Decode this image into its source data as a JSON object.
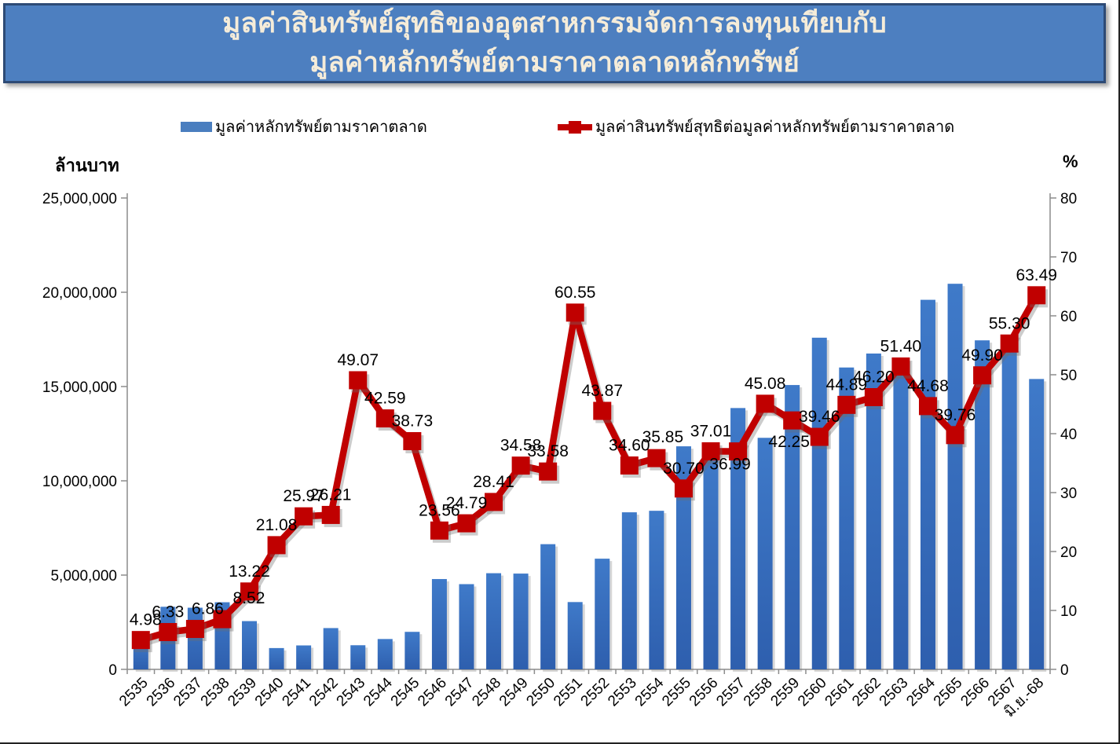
{
  "title": {
    "line1": "มูลค่าสินทรัพย์สุทธิของอุตสาหกรรมจัดการลงทุนเทียบกับ",
    "line2": "มูลค่าหลักทรัพย์ตามราคาตลาดหลักทรัพย์"
  },
  "legend": [
    {
      "label": "มูลค่าหลักทรัพย์ตามราคาตลาด",
      "type": "bar",
      "color": "#4a7ebf"
    },
    {
      "label": "มูลค่าสินทรัพย์สุทธิต่อมูลค่าหลักทรัพย์ตามราคาตลาด",
      "type": "line-marker",
      "color": "#c00000"
    }
  ],
  "axes": {
    "left_title": "ล้านบาท",
    "right_title": "%",
    "left_tick_labels": [
      "0",
      "5,000,000",
      "10,000,000",
      "15,000,000",
      "20,000,000",
      "25,000,000"
    ],
    "left_tick_values": [
      0,
      5000000,
      10000000,
      15000000,
      20000000,
      25000000
    ],
    "right_tick_labels": [
      "0",
      "10",
      "20",
      "30",
      "40",
      "50",
      "60",
      "70",
      "80"
    ],
    "right_tick_values": [
      0,
      10,
      20,
      30,
      40,
      50,
      60,
      70,
      80
    ]
  },
  "colors": {
    "banner_bg": "#4d7fc0",
    "banner_border": "#2d4a75",
    "banner_text": "#f5ecd9",
    "bar_top": "#3f7ac9",
    "bar_bottom": "#2e5fae",
    "line": "#c00000",
    "axis_line": "#8c8c8c",
    "label_text": "#000000"
  },
  "chart_data": {
    "type": "bar+line combo",
    "categories": [
      "2535",
      "2536",
      "2537",
      "2538",
      "2539",
      "2540",
      "2541",
      "2542",
      "2543",
      "2544",
      "2545",
      "2546",
      "2547",
      "2548",
      "2549",
      "2550",
      "2551",
      "2552",
      "2553",
      "2554",
      "2555",
      "2556",
      "2557",
      "2558",
      "2559",
      "2560",
      "2561",
      "2562",
      "2563",
      "2564",
      "2565",
      "2566",
      "2567",
      "มิ.ย.-68"
    ],
    "series": [
      {
        "name": "มูลค่าหลักทรัพย์ตามราคาตลาด",
        "type": "bar",
        "axis": "left",
        "unit": "ล้านบาท",
        "values": [
          1480000,
          3320000,
          3270000,
          3560000,
          2560000,
          1130000,
          1270000,
          2190000,
          1280000,
          1610000,
          1990000,
          4790000,
          4520000,
          5100000,
          5080000,
          6640000,
          3570000,
          5870000,
          8330000,
          8410000,
          11830000,
          11500000,
          13860000,
          12280000,
          15080000,
          17590000,
          16010000,
          16750000,
          16450000,
          19600000,
          20450000,
          17450000,
          17000000,
          15400000
        ]
      },
      {
        "name": "มูลค่าสินทรัพย์สุทธิต่อมูลค่าหลักทรัพย์ตามราคาตลาด",
        "type": "line",
        "axis": "right",
        "unit": "%",
        "values": [
          4.98,
          6.33,
          6.86,
          8.52,
          13.22,
          21.08,
          25.97,
          26.21,
          49.07,
          42.59,
          38.73,
          23.56,
          24.79,
          28.41,
          34.58,
          33.58,
          60.55,
          43.87,
          34.6,
          35.85,
          30.7,
          37.01,
          36.99,
          45.08,
          42.25,
          39.46,
          44.89,
          46.2,
          51.4,
          44.68,
          39.76,
          49.9,
          55.3,
          63.49
        ],
        "data_labels": [
          "4.98",
          "6.33",
          "6.86",
          "8.52",
          "13.22",
          "21.08",
          "25.97",
          "26.21",
          "49.07",
          "42.59",
          "38.73",
          "23.56",
          "24.79",
          "28.41",
          "34.58",
          "33.58",
          "60.55",
          "43.87",
          "34.60",
          "35.85",
          "30.70",
          "37.01",
          "36.99",
          "45.08",
          "42.25",
          "39.46",
          "44.89",
          "46.20",
          "51.40",
          "44.68",
          "39.76",
          "49.90",
          "55.30",
          "63.49"
        ]
      }
    ],
    "left_axis": {
      "title": "ล้านบาท",
      "min": 0,
      "max": 25000000,
      "step": 5000000
    },
    "right_axis": {
      "title": "%",
      "min": 0,
      "max": 80,
      "step": 10
    },
    "grid": false,
    "legend_position": "top",
    "x_label_rotation_deg": -45,
    "label_offsets": {
      "default": [
        0,
        -26
      ],
      "0": [
        6,
        -26
      ],
      "2": [
        16,
        -26
      ],
      "3": [
        34,
        -27
      ],
      "19": [
        8,
        -27
      ],
      "22": [
        -10,
        16
      ],
      "24": [
        -4,
        27
      ]
    }
  }
}
